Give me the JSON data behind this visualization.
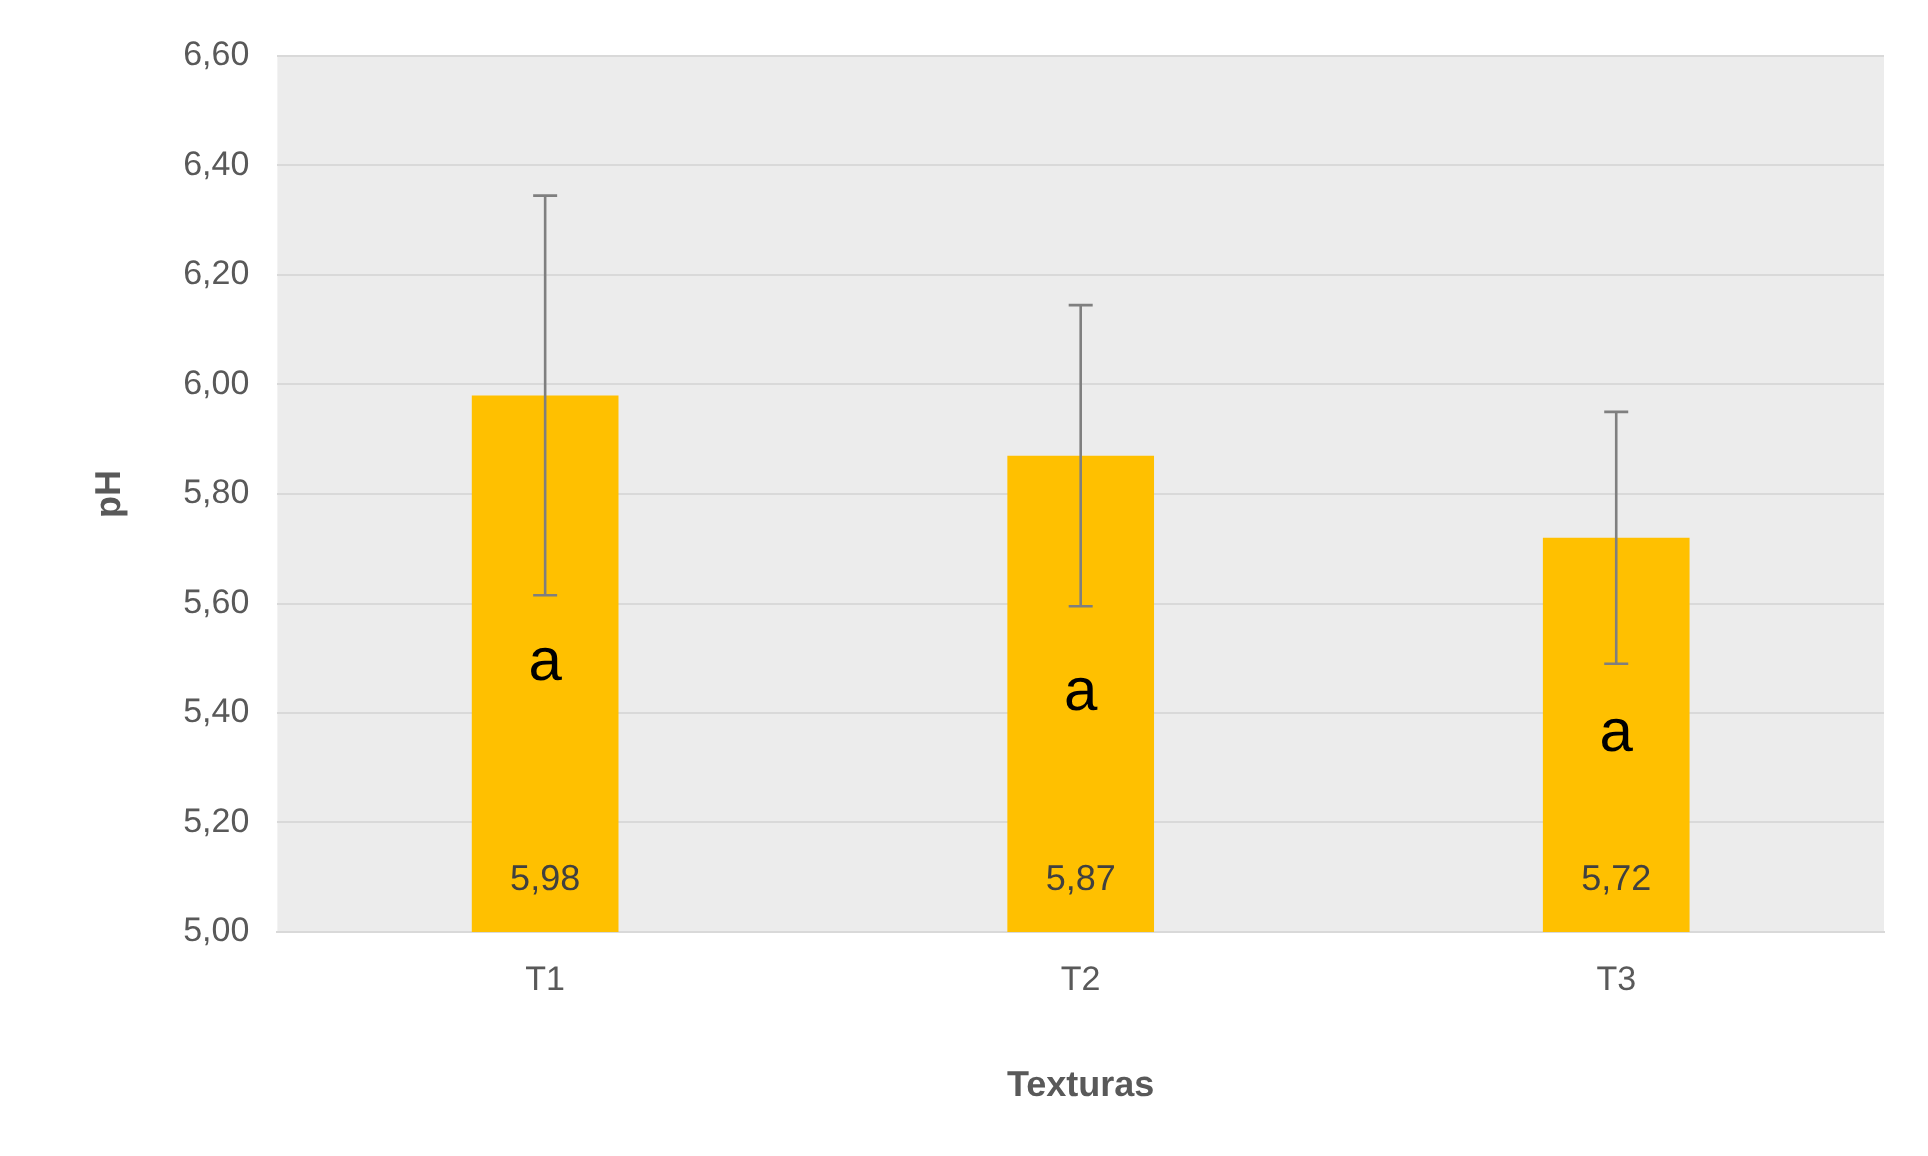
{
  "chart_data": {
    "type": "bar",
    "xlabel": "Texturas",
    "ylabel": "pH",
    "categories": [
      "T1",
      "T2",
      "T3"
    ],
    "values": [
      5.98,
      5.87,
      5.72
    ],
    "errors": [
      0.365,
      0.275,
      0.23
    ],
    "color": "#ffc000",
    "ylim": [
      5,
      6.6
    ],
    "yticks": [
      {
        "value": 5,
        "label": "5,00"
      },
      {
        "value": 5.2,
        "label": "5,20"
      },
      {
        "value": 5.4,
        "label": "5,40"
      },
      {
        "value": 5.6,
        "label": "5,60"
      },
      {
        "value": 5.8,
        "label": "5,80"
      },
      {
        "value": 6,
        "label": "6,00"
      },
      {
        "value": 6.2,
        "label": "6,20"
      },
      {
        "value": 6.4,
        "label": "6,40"
      },
      {
        "value": 6.6,
        "label": "6,60"
      }
    ],
    "grid": "y",
    "data_labels": true,
    "value_labels": [
      "5,98",
      "5,87",
      "5,72"
    ],
    "annotations": [
      "a",
      "a",
      "a"
    ],
    "legend": false
  }
}
